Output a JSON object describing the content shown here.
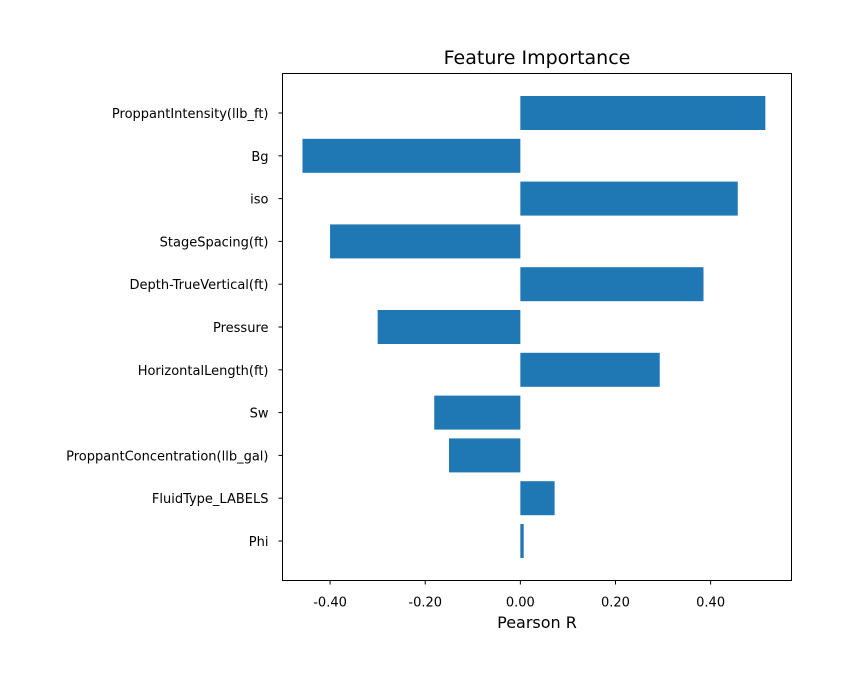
{
  "chart_data": {
    "type": "bar",
    "orientation": "horizontal",
    "title": "Feature Importance",
    "xlabel": "Pearson R",
    "ylabel": "",
    "xlim": [
      -0.5,
      0.57
    ],
    "xticks": [
      -0.4,
      -0.2,
      0.0,
      0.2,
      0.4
    ],
    "xtick_labels": [
      "-0.40",
      "-0.20",
      "0.00",
      "0.20",
      "0.40"
    ],
    "grid": false,
    "bar_color": "#1f77b4",
    "categories": [
      "ProppantIntensity(llb_ft)",
      "Bg",
      "iso",
      "StageSpacing(ft)",
      "Depth-TrueVertical(ft)",
      "Pressure",
      "HorizontalLength(ft)",
      "Sw",
      "ProppantConcentration(llb_gal)",
      "FluidType_LABELS",
      "Phi"
    ],
    "values": [
      0.515,
      -0.458,
      0.457,
      -0.4,
      0.385,
      -0.3,
      0.293,
      -0.181,
      -0.15,
      0.072,
      0.007
    ]
  }
}
